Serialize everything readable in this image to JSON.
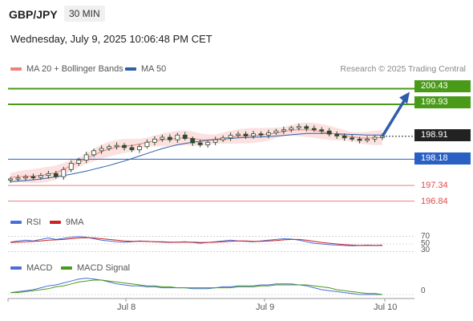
{
  "header": {
    "symbol": "GBP/JPY",
    "timeframe": "30 MIN",
    "datetime": "Wednesday, July 9, 2025 10:06:48 PM CET"
  },
  "legend": {
    "ma20_bb": "MA 20 + Bollinger Bands",
    "ma50": "MA 50",
    "rsi": "RSI",
    "rsi_ma": "9MA",
    "macd": "MACD",
    "macd_signal": "MACD Signal"
  },
  "credit": "Research © 2025 Trading Central",
  "colors": {
    "green_level": "#4a9a1a",
    "blue_level": "#2a5fc4",
    "red_level": "#e64a4a",
    "last_price": "#222222",
    "ma20": "#f08080",
    "ma50": "#2e5ea8",
    "bb_fill": "#fbd9d9",
    "arrow": "#2e5ea8",
    "candle": "#2d4a2d",
    "rsi": "#4a6fd8",
    "rsi_ma": "#cc2222",
    "macd": "#4a6fd8",
    "macd_signal": "#4a9a1a"
  },
  "levels": {
    "r2": "200.43",
    "r1": "199.93",
    "last": "198.91",
    "s1": "198.18",
    "s2": "197.34",
    "s3": "196.84"
  },
  "oscillators": {
    "rsi_70": "70",
    "rsi_50": "50",
    "rsi_30": "30",
    "macd_zero": "0"
  },
  "xaxis": {
    "labels": [
      "Jul 8",
      "Jul 9",
      "Jul 10"
    ]
  },
  "chart_data": {
    "type": "line",
    "title": "GBP/JPY 30 MIN",
    "series": [
      {
        "name": "Price",
        "values": [
          197.55,
          197.58,
          197.62,
          197.6,
          197.66,
          197.72,
          197.62,
          197.85,
          198.05,
          198.15,
          198.32,
          198.45,
          198.52,
          198.58,
          198.62,
          198.55,
          198.48,
          198.58,
          198.72,
          198.82,
          198.88,
          198.8,
          198.95,
          198.84,
          198.7,
          198.64,
          198.72,
          198.8,
          198.86,
          198.94,
          198.98,
          198.92,
          198.99,
          198.95,
          199.02,
          199.08,
          199.12,
          199.18,
          199.22,
          199.16,
          199.12,
          199.08,
          198.98,
          198.92,
          198.86,
          198.82,
          198.78,
          198.82,
          198.88,
          198.91
        ]
      },
      {
        "name": "MA 20",
        "values": [
          197.6,
          197.62,
          197.63,
          197.64,
          197.66,
          197.7,
          197.75,
          197.85,
          197.98,
          198.08,
          198.2,
          198.32,
          198.42,
          198.5,
          198.56,
          198.6,
          198.62,
          198.66,
          198.72,
          198.76,
          198.8,
          198.82,
          198.85,
          198.86,
          198.84,
          198.8,
          198.8,
          198.82,
          198.85,
          198.88,
          198.91,
          198.92,
          198.94,
          198.95,
          198.98,
          199.02,
          199.06,
          199.1,
          199.12,
          199.12,
          199.1,
          199.06,
          199.02,
          198.98,
          198.94,
          198.9,
          198.86,
          198.85,
          198.86,
          198.87
        ]
      },
      {
        "name": "MA 50",
        "values": [
          197.46,
          197.48,
          197.5,
          197.52,
          197.55,
          197.58,
          197.62,
          197.66,
          197.7,
          197.75,
          197.8,
          197.86,
          197.92,
          197.98,
          198.05,
          198.12,
          198.2,
          198.28,
          198.36,
          198.44,
          198.52,
          198.58,
          198.64,
          198.68,
          198.72,
          198.75,
          198.78,
          198.8,
          198.82,
          198.84,
          198.86,
          198.87,
          198.88,
          198.89,
          198.9,
          198.92,
          198.94,
          198.96,
          198.98,
          199.0,
          199.0,
          199.0,
          199.0,
          198.99,
          198.98,
          198.97,
          198.96,
          198.95,
          198.95,
          198.95
        ]
      },
      {
        "name": "RSI",
        "values": [
          55,
          58,
          60,
          58,
          62,
          66,
          62,
          65,
          68,
          70,
          68,
          64,
          60,
          58,
          56,
          55,
          56,
          58,
          57,
          56,
          55,
          54,
          55,
          56,
          54,
          52,
          54,
          56,
          58,
          60,
          58,
          57,
          56,
          58,
          60,
          62,
          64,
          63,
          60,
          56,
          52,
          50,
          48,
          47,
          46,
          45,
          46,
          47,
          46,
          47
        ]
      },
      {
        "name": "9MA",
        "values": [
          54,
          55,
          56,
          57,
          58,
          60,
          61,
          62,
          64,
          66,
          67,
          66,
          64,
          62,
          60,
          58,
          57,
          57,
          57,
          56,
          56,
          55,
          55,
          55,
          55,
          54,
          54,
          55,
          56,
          57,
          58,
          58,
          57,
          57,
          58,
          59,
          61,
          62,
          62,
          60,
          57,
          54,
          52,
          50,
          48,
          47,
          46,
          46,
          46,
          46
        ]
      },
      {
        "name": "MACD",
        "values": [
          0.02,
          0.03,
          0.04,
          0.05,
          0.07,
          0.09,
          0.1,
          0.12,
          0.14,
          0.16,
          0.17,
          0.16,
          0.15,
          0.13,
          0.11,
          0.1,
          0.09,
          0.09,
          0.08,
          0.08,
          0.07,
          0.07,
          0.07,
          0.07,
          0.06,
          0.06,
          0.06,
          0.07,
          0.08,
          0.08,
          0.09,
          0.09,
          0.09,
          0.1,
          0.1,
          0.11,
          0.11,
          0.11,
          0.1,
          0.09,
          0.07,
          0.05,
          0.04,
          0.03,
          0.02,
          0.01,
          0.0,
          0.0,
          0.0,
          0.0
        ]
      },
      {
        "name": "MACD Signal",
        "values": [
          0.02,
          0.02,
          0.03,
          0.04,
          0.05,
          0.06,
          0.08,
          0.09,
          0.11,
          0.13,
          0.14,
          0.15,
          0.15,
          0.14,
          0.13,
          0.12,
          0.11,
          0.1,
          0.09,
          0.09,
          0.08,
          0.08,
          0.07,
          0.07,
          0.07,
          0.07,
          0.07,
          0.07,
          0.07,
          0.07,
          0.08,
          0.08,
          0.08,
          0.09,
          0.09,
          0.1,
          0.1,
          0.1,
          0.1,
          0.1,
          0.09,
          0.08,
          0.07,
          0.05,
          0.04,
          0.03,
          0.02,
          0.01,
          0.01,
          0.0
        ]
      }
    ],
    "levels": [
      200.43,
      199.93,
      198.91,
      198.18,
      197.34,
      196.84
    ],
    "projection_target": 200.43,
    "ylim": [
      196.55,
      200.75
    ],
    "rsi_lines": [
      70,
      50,
      30
    ],
    "x_labels": [
      "Jul 8",
      "Jul 9",
      "Jul 10"
    ]
  }
}
